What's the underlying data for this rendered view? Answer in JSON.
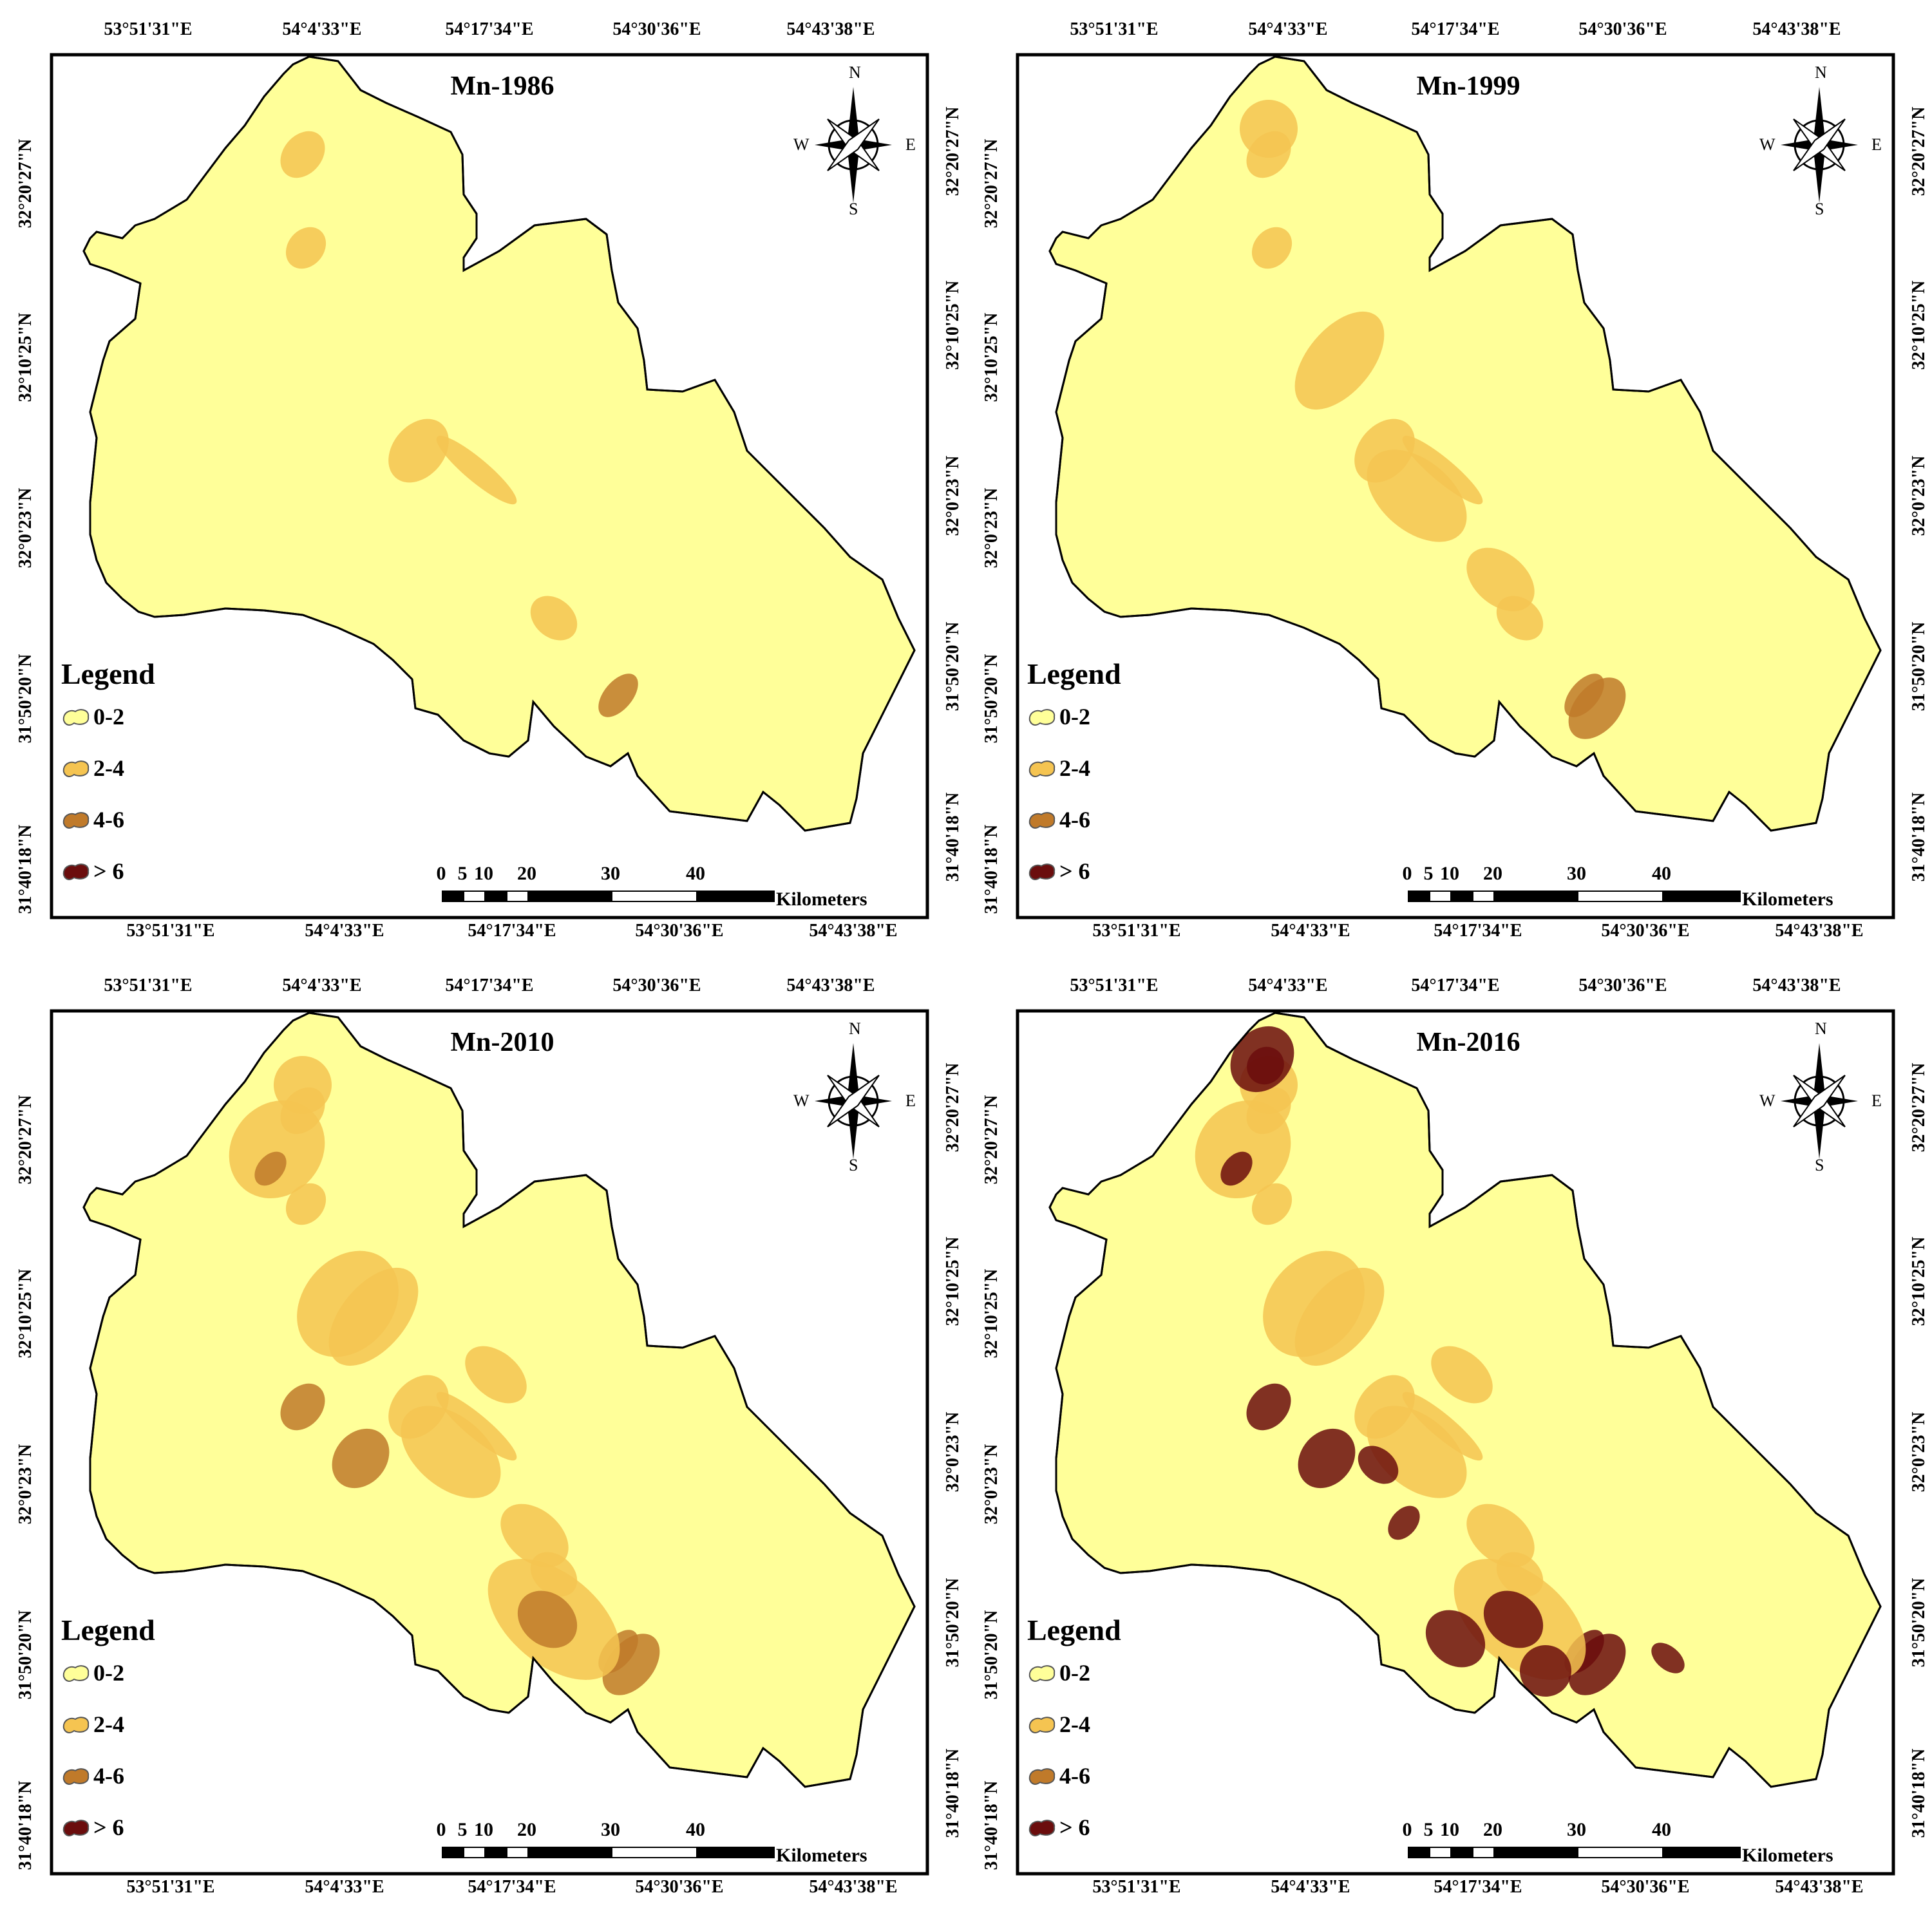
{
  "axis_ticks": {
    "longitude": [
      "53°51'31\"E",
      "54°4'33\"E",
      "54°17'34\"E",
      "54°30'36\"E",
      "54°43'38\"E"
    ],
    "latitude": [
      "32°20'27\"N",
      "32°10'25\"N",
      "32°0'23\"N",
      "31°50'20\"N",
      "31°40'18\"N"
    ]
  },
  "panels": [
    {
      "title": "Mn-1986",
      "intensity": 0
    },
    {
      "title": "Mn-1999",
      "intensity": 1
    },
    {
      "title": "Mn-2010",
      "intensity": 2
    },
    {
      "title": "Mn-2016",
      "intensity": 3
    }
  ],
  "legend": {
    "title": "Legend",
    "classes": [
      {
        "label": "0-2",
        "color": "#ffff99"
      },
      {
        "label": "2-4",
        "color": "#f5c451"
      },
      {
        "label": "4-6",
        "color": "#c07a2a"
      },
      {
        "label": "> 6",
        "color": "#6b0d0d"
      }
    ]
  },
  "compass": {
    "n": "N",
    "s": "S",
    "e": "E",
    "w": "W"
  },
  "scale_bar": {
    "ticks": [
      "0",
      "5",
      "10",
      "20",
      "30",
      "40"
    ],
    "unit": "Kilometers"
  }
}
